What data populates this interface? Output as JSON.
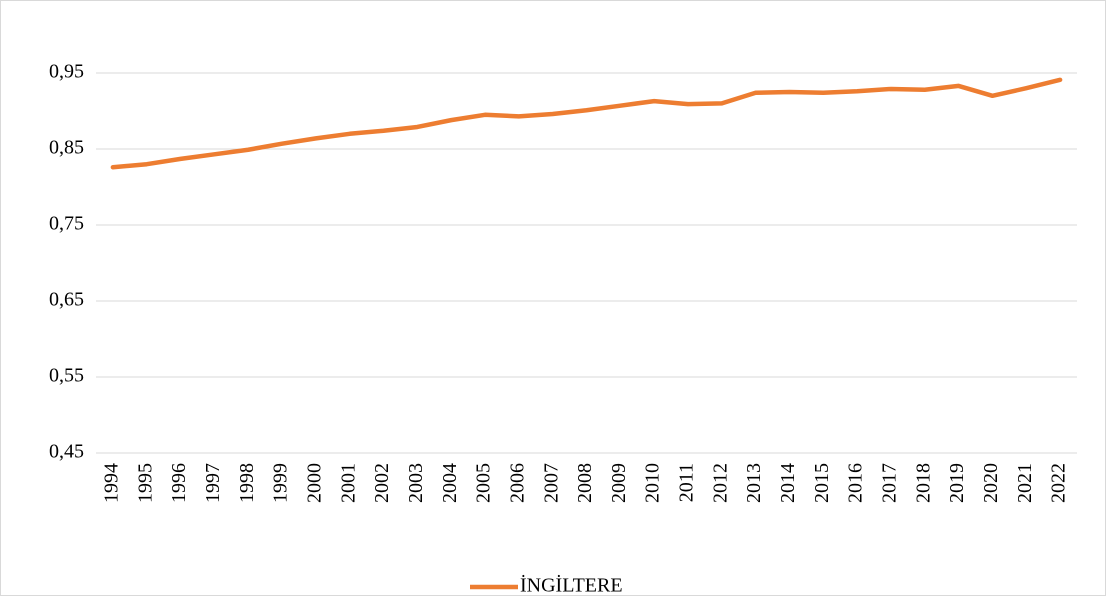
{
  "chart_data": {
    "type": "line",
    "categories": [
      "1994",
      "1995",
      "1996",
      "1997",
      "1998",
      "1999",
      "2000",
      "2001",
      "2002",
      "2003",
      "2004",
      "2005",
      "2006",
      "2007",
      "2008",
      "2009",
      "2010",
      "2011",
      "2012",
      "2013",
      "2014",
      "2015",
      "2016",
      "2017",
      "2018",
      "2019",
      "2020",
      "2021",
      "2022"
    ],
    "series": [
      {
        "name": "İNGİLTERE",
        "color": "#ed7d31",
        "values": [
          0.826,
          0.83,
          0.837,
          0.843,
          0.849,
          0.857,
          0.864,
          0.87,
          0.874,
          0.879,
          0.888,
          0.895,
          0.893,
          0.896,
          0.901,
          0.907,
          0.913,
          0.909,
          0.91,
          0.924,
          0.925,
          0.924,
          0.926,
          0.929,
          0.928,
          0.933,
          0.92,
          0.93,
          0.941
        ]
      }
    ],
    "ylim": [
      0.45,
      1.0
    ],
    "yticks": [
      {
        "value": 0.45,
        "label": "0,45"
      },
      {
        "value": 0.55,
        "label": "0,55"
      },
      {
        "value": 0.65,
        "label": "0,65"
      },
      {
        "value": 0.75,
        "label": "0,75"
      },
      {
        "value": 0.85,
        "label": "0,85"
      },
      {
        "value": 0.95,
        "label": "0,95"
      }
    ],
    "grid": true,
    "legend": "bottom"
  }
}
